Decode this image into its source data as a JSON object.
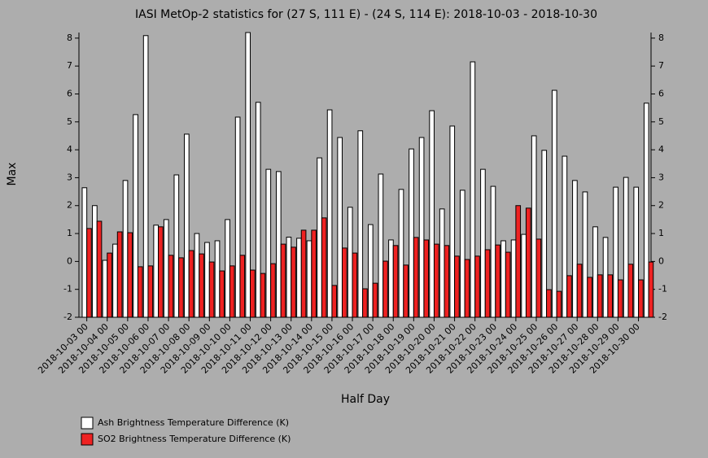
{
  "chart_data": {
    "type": "bar",
    "title": "IASI MetOp-2 statistics for (27 S, 111 E) - (24 S, 114 E): 2018-10-03 - 2018-10-30",
    "xlabel": "Half Day",
    "ylabel": "Max",
    "categories": [
      "2018-10-03 00",
      null,
      "2018-10-04 00",
      null,
      "2018-10-05 00",
      null,
      "2018-10-06 00",
      null,
      "2018-10-07 00",
      null,
      "2018-10-08 00",
      null,
      "2018-10-09 00",
      null,
      "2018-10-10 00",
      null,
      "2018-10-11 00",
      null,
      "2018-10-12 00",
      null,
      "2018-10-13 00",
      null,
      "2018-10-14 00",
      null,
      "2018-10-15 00",
      null,
      "2018-10-16 00",
      null,
      "2018-10-17 00",
      null,
      "2018-10-18 00",
      null,
      "2018-10-19 00",
      null,
      "2018-10-20 00",
      null,
      "2018-10-21 00",
      null,
      "2018-10-22 00",
      null,
      "2018-10-23 00",
      null,
      "2018-10-24 00",
      null,
      "2018-10-25 00",
      null,
      "2018-10-26 00",
      null,
      "2018-10-27 00",
      null,
      "2018-10-28 00",
      null,
      "2018-10-29 00",
      null,
      "2018-10-30 00",
      null
    ],
    "series": [
      {
        "name": "Ash Brightness Temperature Difference (K)",
        "color": "#ffffff",
        "values": [
          2.64,
          2.0,
          0.04,
          0.62,
          2.9,
          5.26,
          8.09,
          1.3,
          1.5,
          3.1,
          4.56,
          1.0,
          0.68,
          0.74,
          1.5,
          5.17,
          8.2,
          5.7,
          3.3,
          3.22,
          0.87,
          0.83,
          0.74,
          3.71,
          5.43,
          4.44,
          1.94,
          4.68,
          1.32,
          3.13,
          0.77,
          2.58,
          4.03,
          4.44,
          5.4,
          1.88,
          4.85,
          2.55,
          7.15,
          3.3,
          2.69,
          0.74,
          0.77,
          0.97,
          4.5,
          3.98,
          6.13,
          3.77,
          2.9,
          2.49,
          1.24,
          0.86,
          2.66,
          3.01,
          2.66,
          5.67
        ]
      },
      {
        "name": "SO2 Brightness Temperature Difference (K)",
        "color": "#ee2222",
        "values": [
          1.18,
          1.44,
          0.3,
          1.06,
          1.03,
          -0.19,
          -0.16,
          1.24,
          0.22,
          0.13,
          0.39,
          0.27,
          -0.02,
          -0.34,
          -0.16,
          0.22,
          -0.31,
          -0.43,
          -0.08,
          0.62,
          0.51,
          1.12,
          1.12,
          1.56,
          -0.86,
          0.48,
          0.3,
          -0.98,
          -0.78,
          0.01,
          0.57,
          -0.13,
          0.86,
          0.77,
          0.62,
          0.57,
          0.19,
          0.07,
          0.19,
          0.42,
          0.59,
          0.33,
          2.0,
          1.91,
          0.8,
          -1.01,
          -1.07,
          -0.51,
          -0.1,
          -0.57,
          -0.48,
          -0.48,
          -0.66,
          -0.1,
          -0.66,
          -0.02
        ]
      }
    ],
    "ylim": [
      -2,
      8.2
    ],
    "yticks": [
      -2,
      -1,
      0,
      1,
      2,
      3,
      4,
      5,
      6,
      7,
      8
    ]
  }
}
